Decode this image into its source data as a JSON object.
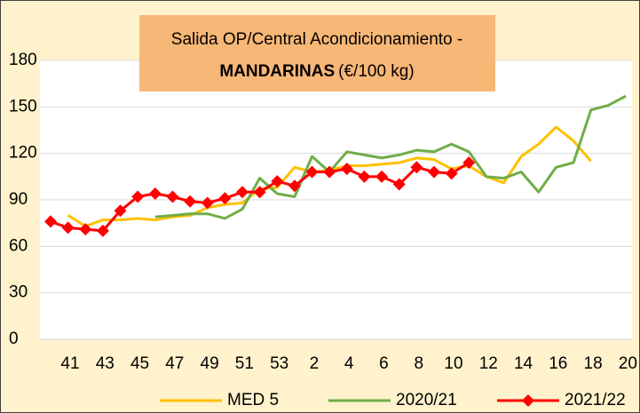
{
  "chart_data": {
    "type": "line",
    "title": [
      "Salida OP/Central Acondicionamiento -",
      "MANDARINAS",
      "(€/100 kg)"
    ],
    "categories": [
      "41",
      null,
      "43",
      null,
      "45",
      null,
      "47",
      null,
      "49",
      null,
      "51",
      null,
      "53",
      null,
      "2",
      null,
      "4",
      null,
      "6",
      null,
      "8",
      null,
      "10",
      null,
      "12",
      null,
      "14",
      null,
      "16",
      null,
      "18",
      null,
      "20",
      null
    ],
    "series": [
      {
        "name": "MED 5",
        "color": "#FFC000",
        "values": [
          null,
          80,
          73,
          77,
          77,
          78,
          77,
          79,
          80,
          85,
          87,
          88,
          97,
          98,
          111,
          108,
          109,
          112,
          112,
          113,
          114,
          117,
          116,
          110,
          112,
          105,
          101,
          118,
          126,
          137,
          128,
          115,
          null,
          null
        ]
      },
      {
        "name": "2020/21",
        "color": "#70AD47",
        "values": [
          null,
          null,
          null,
          null,
          null,
          null,
          79,
          80,
          81,
          81,
          78,
          84,
          104,
          94,
          92,
          118,
          108,
          121,
          119,
          117,
          119,
          122,
          121,
          126,
          121,
          105,
          104,
          108,
          95,
          111,
          114,
          148,
          151,
          157
        ]
      },
      {
        "name": "2021/22",
        "color": "#FF0000",
        "marker": "diamond",
        "values": [
          76,
          72,
          71,
          70,
          83,
          92,
          94,
          92,
          89,
          88,
          91,
          95,
          95,
          102,
          99,
          108,
          108,
          110,
          105,
          105,
          100,
          111,
          108,
          107,
          114,
          null,
          null,
          null,
          null,
          null,
          null,
          null,
          null,
          null
        ]
      }
    ],
    "ylim": [
      0,
      180
    ],
    "yticks": [
      0,
      30,
      60,
      90,
      120,
      150,
      180
    ],
    "grid": true,
    "legend": "bottom"
  }
}
